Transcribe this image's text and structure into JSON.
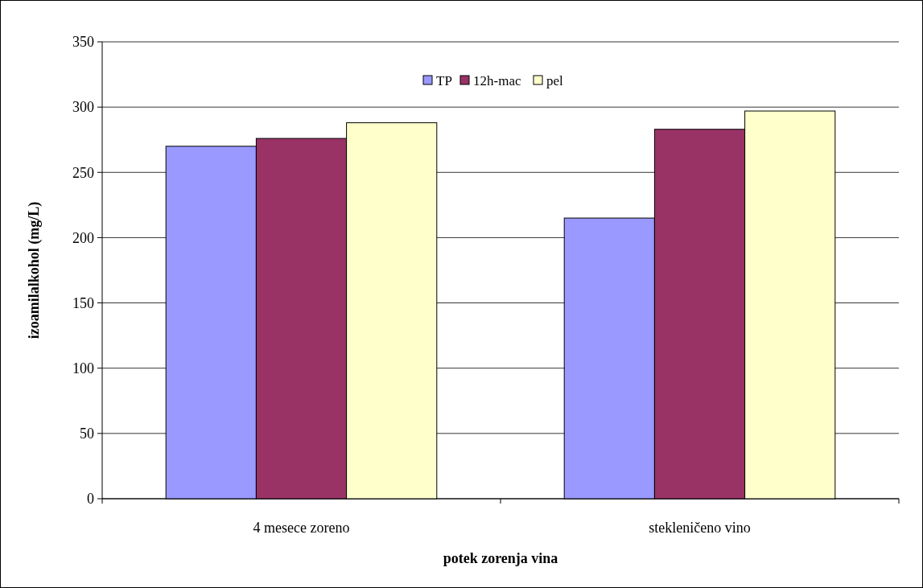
{
  "chart_data": {
    "type": "bar",
    "xlabel": "potek zorenja vina",
    "ylabel": "izoamilalkohol (mg/L)",
    "categories": [
      "4 mesece zoreno",
      "stekleničeno vino"
    ],
    "series": [
      {
        "name": "TP",
        "color": "#9999ff",
        "values": [
          270,
          215
        ]
      },
      {
        "name": "12h-mac",
        "color": "#993366",
        "values": [
          276,
          283
        ]
      },
      {
        "name": "pel",
        "color": "#ffffcc",
        "values": [
          288,
          297
        ]
      }
    ],
    "ylim": [
      0,
      350
    ],
    "yticks": [
      0,
      50,
      100,
      150,
      200,
      250,
      300,
      350
    ],
    "grid": "y",
    "legend": "top"
  }
}
